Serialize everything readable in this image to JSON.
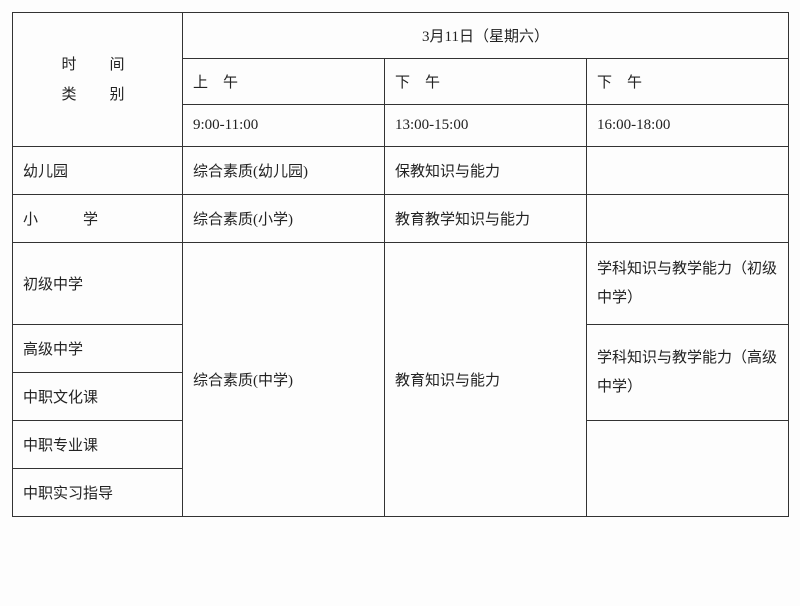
{
  "header": {
    "timeLabel": "时　间",
    "categoryLabel": "类　别",
    "date": "3月11日（星期六）",
    "periods": {
      "morning": "上　午",
      "afternoon1": "下　午",
      "afternoon2": "下　午"
    },
    "times": {
      "slot1": "9:00-11:00",
      "slot2": "13:00-15:00",
      "slot3": "16:00-18:00"
    }
  },
  "rows": {
    "kindergarten": {
      "label": "幼儿园",
      "c1": "综合素质(幼儿园)",
      "c2": "保教知识与能力",
      "c3": ""
    },
    "primary": {
      "label": "小　　　学",
      "c1": "综合素质(小学)",
      "c2": "教育教学知识与能力",
      "c3": ""
    },
    "juniorHigh": {
      "label": "初级中学"
    },
    "seniorHigh": {
      "label": "高级中学"
    },
    "vocCulture": {
      "label": "中职文化课"
    },
    "vocMajor": {
      "label": "中职专业课"
    },
    "vocIntern": {
      "label": "中职实习指导"
    },
    "middleShared": {
      "c1": "综合素质(中学)",
      "c2": "教育知识与能力"
    },
    "juniorC3": "学科知识与教学能力（初级中学）",
    "seniorC3": "学科知识与教学能力（高级中学）"
  },
  "style": {
    "borderColor": "#333333",
    "textColor": "#222222",
    "background": "#fdfdfd",
    "fontFamily": "SimSun"
  }
}
